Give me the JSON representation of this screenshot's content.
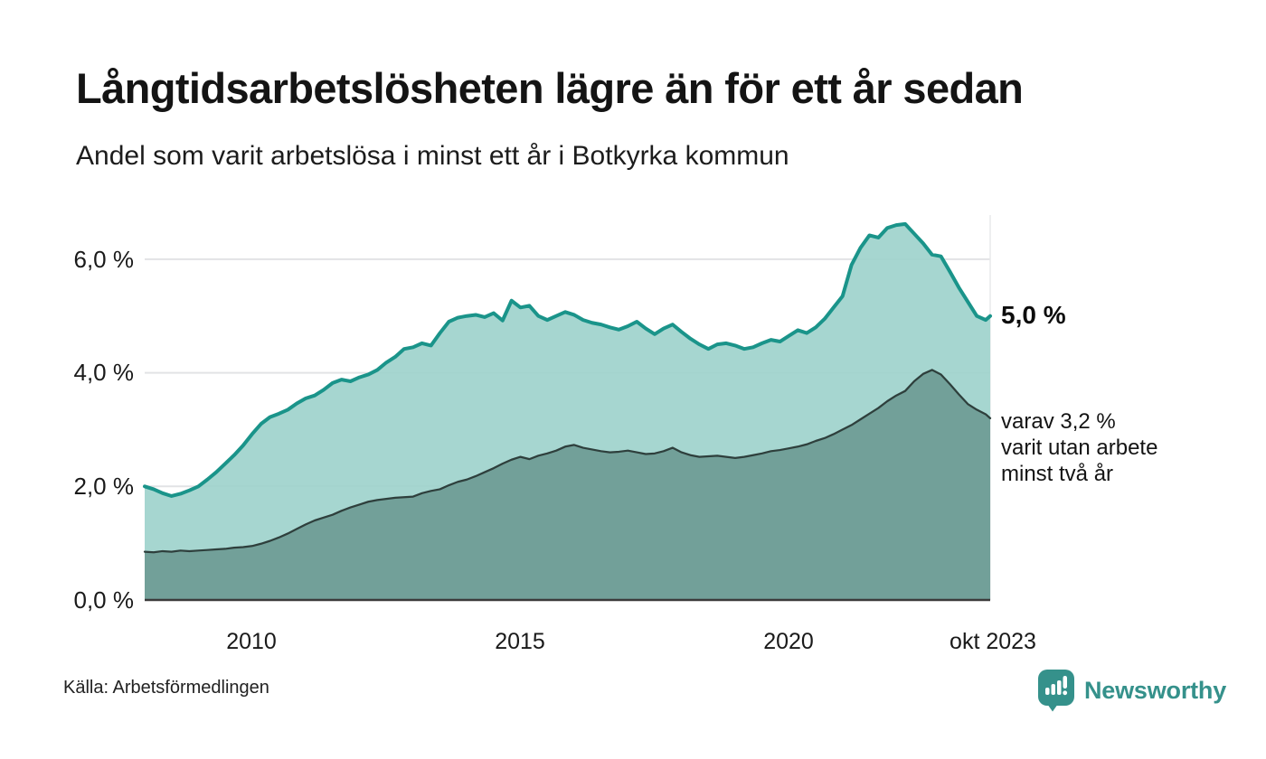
{
  "header": {
    "title": "Långtidsarbetslösheten lägre än för ett år sedan",
    "subtitle": "Andel som varit arbetslösa i minst ett år i Botkyrka kommun"
  },
  "annotations": {
    "end_value_top": "5,0 %",
    "end_note_line1": "varav 3,2 %",
    "end_note_line2": "varit utan arbete",
    "end_note_line3": "minst två år"
  },
  "footer": {
    "source": "Källa: Arbetsförmedlingen",
    "brand": "Newsworthy"
  },
  "colors": {
    "accent_teal": "#1a948a",
    "fill_light": "#9fd3cc",
    "fill_dark": "#6f9d97",
    "line_dark": "#2e3f3c",
    "gridline": "#e2e3e5",
    "axis_line": "#3b3b3b",
    "brand_teal": "#35918b"
  },
  "chart_data": {
    "type": "area",
    "title": "Långtidsarbetslösheten lägre än för ett år sedan",
    "subtitle": "Andel som varit arbetslösa i minst ett år i Botkyrka kommun",
    "grid": true,
    "x_axis": {
      "start_label_period": "jan 2008",
      "end_label_period": "okt 2023",
      "tick_labels": [
        "2010",
        "2015",
        "2020",
        "okt 2023"
      ],
      "tick_positions_months": [
        24,
        84,
        144,
        189
      ]
    },
    "y_axis": {
      "unit": "%",
      "tick_labels": [
        "0,0 %",
        "2,0 %",
        "4,0 %",
        "6,0 %"
      ],
      "tick_values": [
        0,
        2,
        4,
        6
      ],
      "ylim": [
        0,
        6.9
      ]
    },
    "x_months": [
      0,
      2,
      4,
      6,
      8,
      10,
      12,
      14,
      16,
      18,
      20,
      22,
      24,
      26,
      28,
      30,
      32,
      34,
      36,
      38,
      40,
      42,
      44,
      46,
      48,
      50,
      52,
      54,
      56,
      58,
      60,
      62,
      64,
      66,
      68,
      70,
      72,
      74,
      76,
      78,
      80,
      82,
      84,
      86,
      88,
      90,
      92,
      94,
      96,
      98,
      100,
      102,
      104,
      106,
      108,
      110,
      112,
      114,
      116,
      118,
      120,
      122,
      124,
      126,
      128,
      130,
      132,
      134,
      136,
      138,
      140,
      142,
      144,
      146,
      148,
      150,
      152,
      154,
      156,
      158,
      160,
      162,
      164,
      166,
      168,
      170,
      172,
      174,
      176,
      178,
      180,
      182,
      184,
      186,
      188,
      189
    ],
    "series": [
      {
        "name": "Andel arbetslösa minst ett år",
        "end_value_pct": 5.0,
        "line_color": "#1a948a",
        "fill_color": "#9fd3cc",
        "values_pct": [
          2.0,
          1.95,
          1.88,
          1.83,
          1.87,
          1.93,
          2.0,
          2.12,
          2.25,
          2.4,
          2.55,
          2.72,
          2.92,
          3.1,
          3.22,
          3.28,
          3.35,
          3.46,
          3.55,
          3.6,
          3.7,
          3.82,
          3.88,
          3.85,
          3.92,
          3.97,
          4.05,
          4.18,
          4.28,
          4.42,
          4.45,
          4.52,
          4.48,
          4.7,
          4.9,
          4.97,
          5.0,
          5.02,
          4.98,
          5.05,
          4.92,
          5.27,
          5.15,
          5.18,
          5.0,
          4.93,
          5.0,
          5.07,
          5.02,
          4.93,
          4.88,
          4.85,
          4.8,
          4.76,
          4.82,
          4.9,
          4.78,
          4.68,
          4.78,
          4.85,
          4.72,
          4.6,
          4.5,
          4.42,
          4.5,
          4.52,
          4.48,
          4.42,
          4.45,
          4.52,
          4.58,
          4.55,
          4.65,
          4.75,
          4.7,
          4.8,
          4.95,
          5.15,
          5.35,
          5.9,
          6.2,
          6.42,
          6.38,
          6.55,
          6.6,
          6.62,
          6.45,
          6.28,
          6.08,
          6.05,
          5.78,
          5.5,
          5.25,
          5.0,
          4.93,
          5.0
        ]
      },
      {
        "name": "varav utan arbete minst två år",
        "end_value_pct": 3.2,
        "line_color": "#2e3f3c",
        "fill_color": "#6f9d97",
        "values_pct": [
          0.85,
          0.84,
          0.86,
          0.85,
          0.87,
          0.86,
          0.87,
          0.88,
          0.89,
          0.9,
          0.92,
          0.93,
          0.95,
          0.99,
          1.04,
          1.1,
          1.17,
          1.25,
          1.33,
          1.4,
          1.45,
          1.5,
          1.57,
          1.63,
          1.68,
          1.73,
          1.76,
          1.78,
          1.8,
          1.81,
          1.82,
          1.88,
          1.92,
          1.95,
          2.02,
          2.08,
          2.12,
          2.18,
          2.25,
          2.32,
          2.4,
          2.47,
          2.52,
          2.48,
          2.54,
          2.58,
          2.63,
          2.7,
          2.73,
          2.68,
          2.65,
          2.62,
          2.6,
          2.61,
          2.63,
          2.6,
          2.57,
          2.58,
          2.62,
          2.68,
          2.6,
          2.55,
          2.52,
          2.53,
          2.54,
          2.52,
          2.5,
          2.52,
          2.55,
          2.58,
          2.62,
          2.64,
          2.67,
          2.7,
          2.74,
          2.8,
          2.85,
          2.92,
          3.0,
          3.08,
          3.18,
          3.28,
          3.38,
          3.5,
          3.6,
          3.68,
          3.85,
          3.98,
          4.05,
          3.97,
          3.8,
          3.62,
          3.45,
          3.35,
          3.27,
          3.2
        ]
      }
    ],
    "annotations": [
      {
        "text": "5,0 %",
        "at_value_pct": 5.0,
        "series": 0
      },
      {
        "text": "varav 3,2 % varit utan arbete minst två år",
        "at_value_pct": 3.2,
        "series": 1
      }
    ],
    "legend_position": "none"
  }
}
